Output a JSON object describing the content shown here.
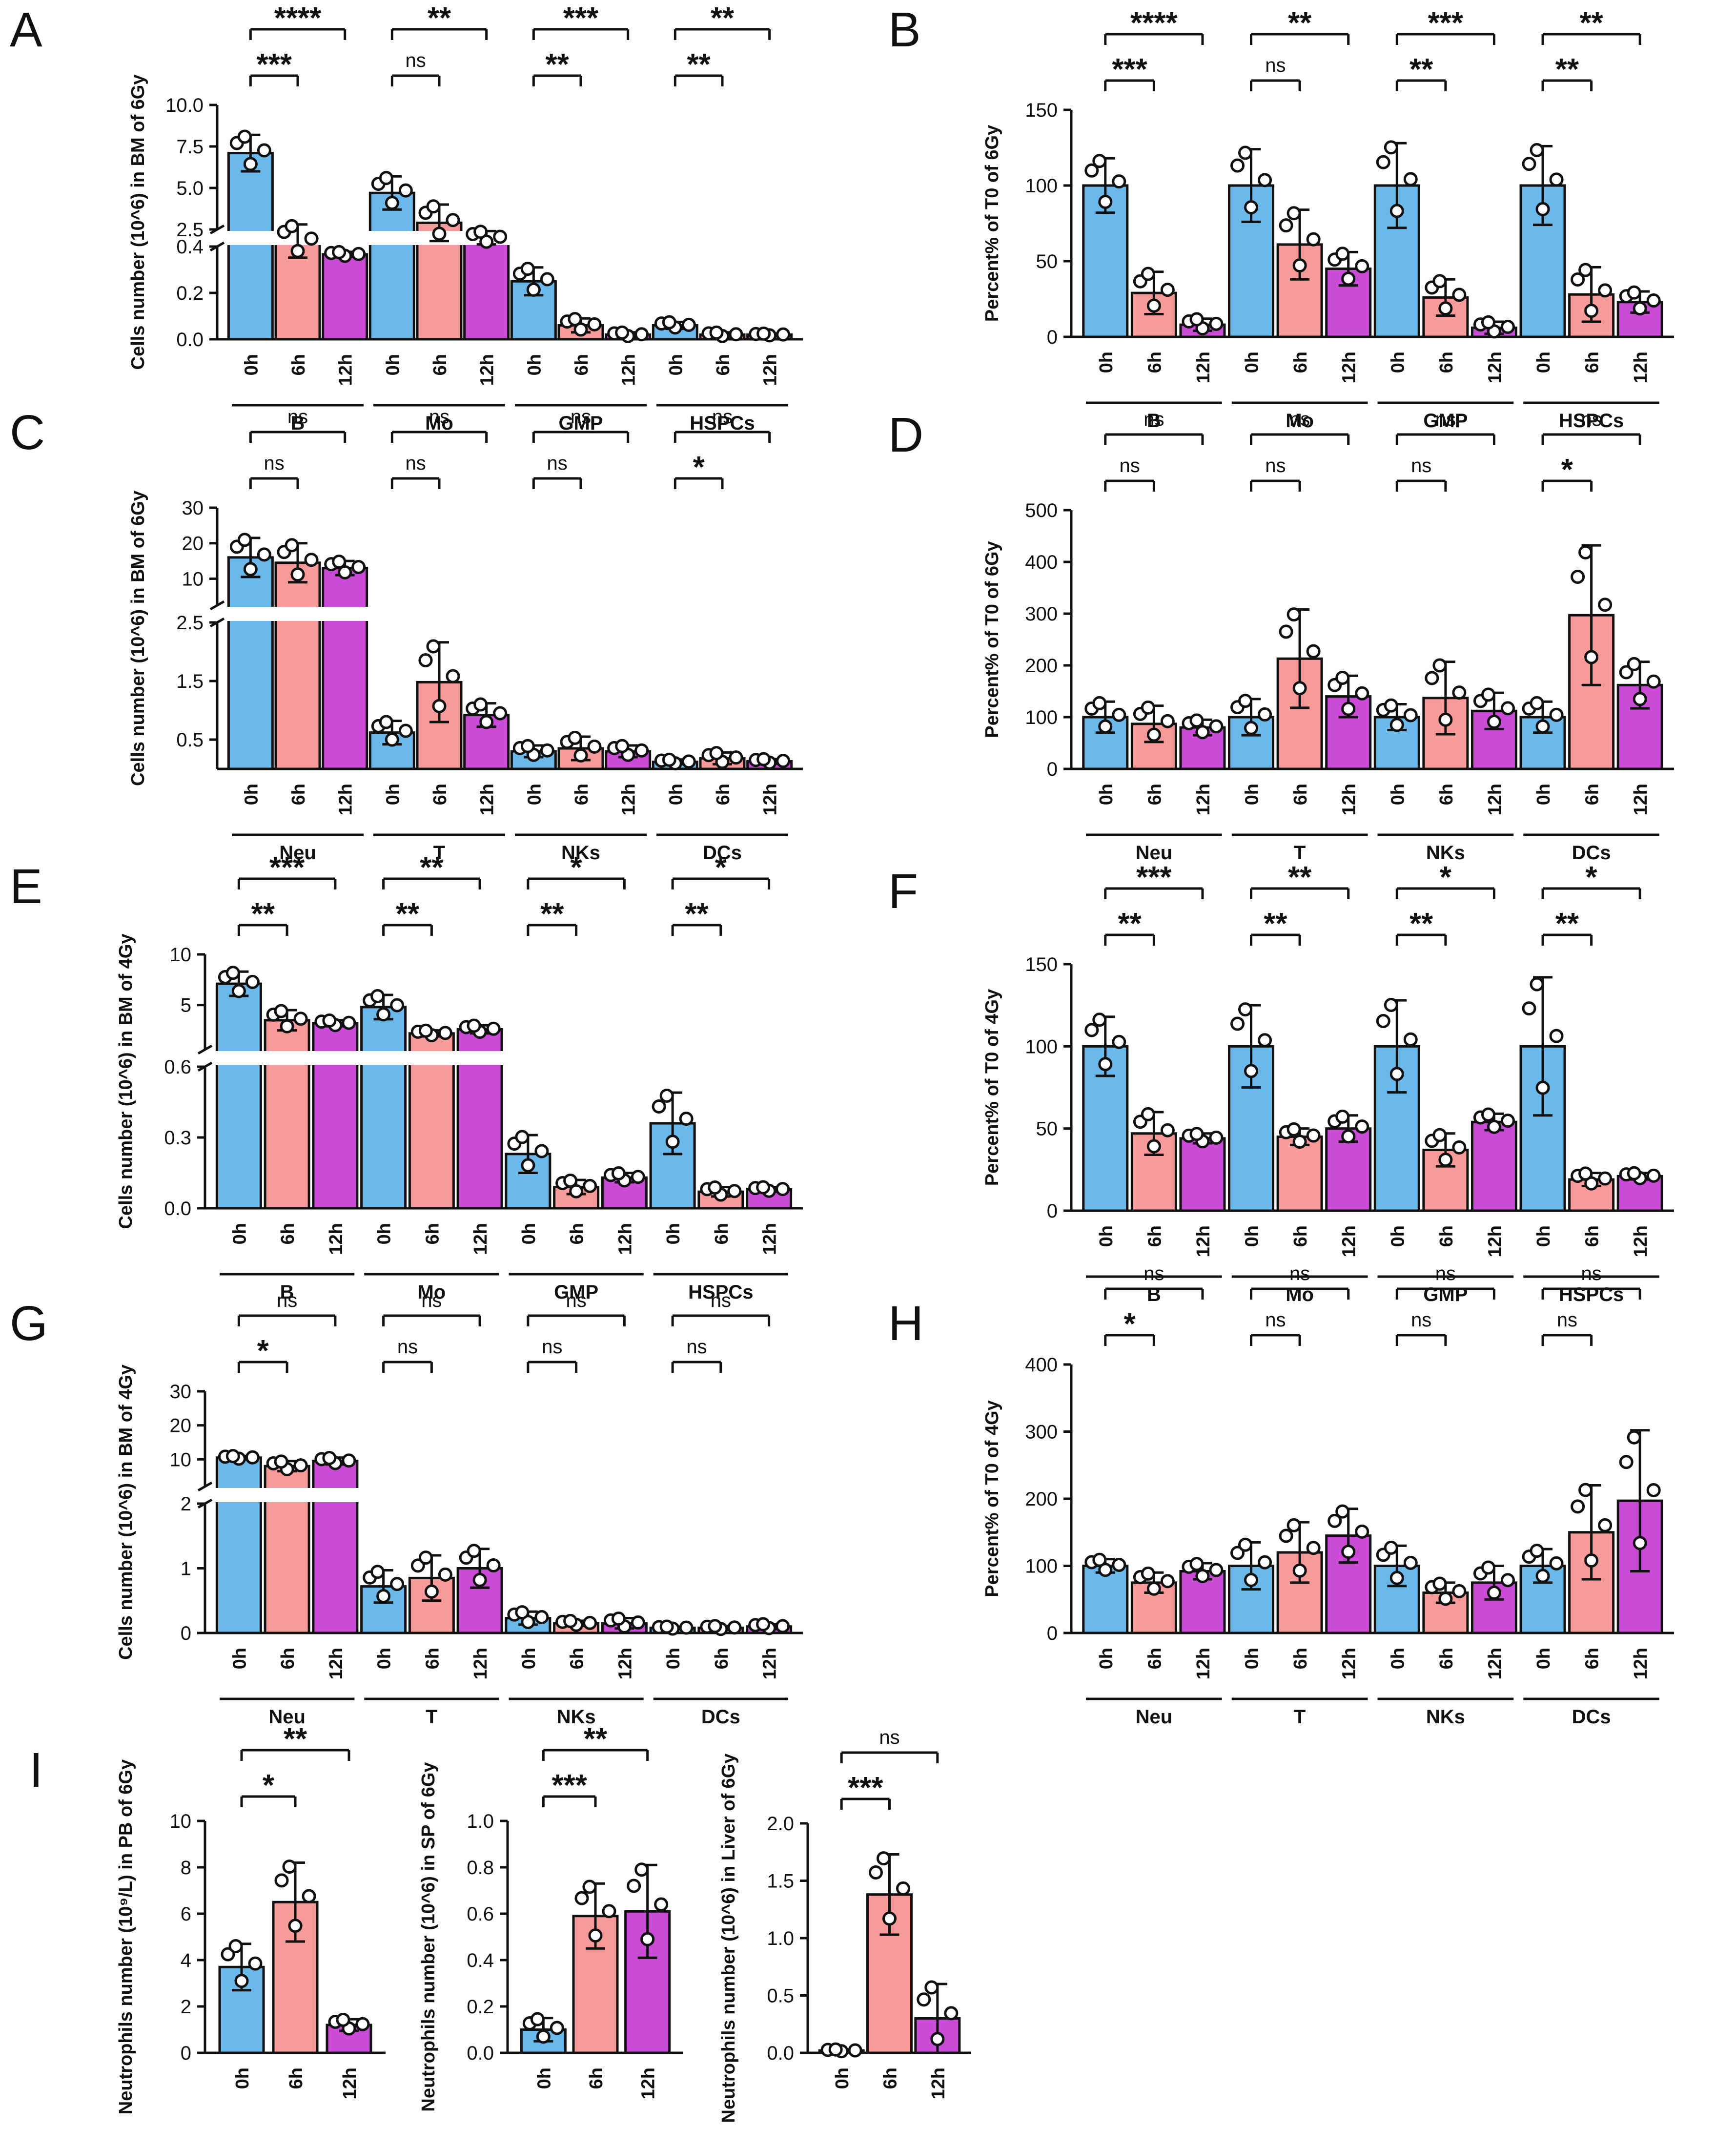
{
  "colors": {
    "c0h": "#6BB8EB",
    "c6h": "#F79A9A",
    "c12h": "#C94BD6",
    "ink": "#111111"
  },
  "chart_data": [
    {
      "panel": "A",
      "type": "bar",
      "ylabel": "Cells number (10^6) in BM of 6Gy",
      "groups": [
        "B",
        "Mo",
        "GMP",
        "HSPCs"
      ],
      "conditions": [
        "0h",
        "6h",
        "12h"
      ],
      "axis": {
        "lower": [
          0,
          0.4
        ],
        "upper": [
          2.5,
          10
        ],
        "lower_ticks": [
          "0.0",
          "0.2",
          "0.4"
        ],
        "upper_ticks": [
          "2.5",
          "5.0",
          "7.5",
          "10.0"
        ]
      },
      "values": [
        [
          7.1,
          1.8,
          1.0
        ],
        [
          4.7,
          2.9,
          2.0
        ],
        [
          0.25,
          0.06,
          0.02
        ],
        [
          0.06,
          0.02,
          0.02
        ]
      ],
      "errors": [
        [
          1.1,
          1.0,
          0.15
        ],
        [
          1.0,
          1.1,
          0.4
        ],
        [
          0.06,
          0.03,
          0.01
        ],
        [
          0.015,
          0.01,
          0.005
        ]
      ],
      "significance": [
        {
          "group": 0,
          "pair": [
            0,
            1
          ],
          "label": "***"
        },
        {
          "group": 0,
          "pair": [
            0,
            2
          ],
          "label": "****"
        },
        {
          "group": 1,
          "pair": [
            0,
            1
          ],
          "label": "ns"
        },
        {
          "group": 1,
          "pair": [
            0,
            2
          ],
          "label": "**"
        },
        {
          "group": 2,
          "pair": [
            0,
            1
          ],
          "label": "**"
        },
        {
          "group": 2,
          "pair": [
            0,
            2
          ],
          "label": "***"
        },
        {
          "group": 3,
          "pair": [
            0,
            1
          ],
          "label": "**"
        },
        {
          "group": 3,
          "pair": [
            0,
            2
          ],
          "label": "**"
        }
      ]
    },
    {
      "panel": "B",
      "type": "bar",
      "ylabel": "Percent% of T0 of 6Gy",
      "groups": [
        "B",
        "Mo",
        "GMP",
        "HSPCs"
      ],
      "conditions": [
        "0h",
        "6h",
        "12h"
      ],
      "axis": {
        "range": [
          0,
          150
        ],
        "ticks": [
          "0",
          "50",
          "100",
          "150"
        ]
      },
      "values": [
        [
          100,
          29,
          8
        ],
        [
          100,
          61,
          45
        ],
        [
          100,
          26,
          6
        ],
        [
          100,
          28,
          23
        ]
      ],
      "errors": [
        [
          18,
          14,
          4
        ],
        [
          24,
          23,
          11
        ],
        [
          28,
          12,
          4
        ],
        [
          26,
          18,
          7
        ]
      ],
      "significance": [
        {
          "group": 0,
          "pair": [
            0,
            1
          ],
          "label": "***"
        },
        {
          "group": 0,
          "pair": [
            0,
            2
          ],
          "label": "****"
        },
        {
          "group": 1,
          "pair": [
            0,
            1
          ],
          "label": "ns"
        },
        {
          "group": 1,
          "pair": [
            0,
            2
          ],
          "label": "**"
        },
        {
          "group": 2,
          "pair": [
            0,
            1
          ],
          "label": "**"
        },
        {
          "group": 2,
          "pair": [
            0,
            2
          ],
          "label": "***"
        },
        {
          "group": 3,
          "pair": [
            0,
            1
          ],
          "label": "**"
        },
        {
          "group": 3,
          "pair": [
            0,
            2
          ],
          "label": "**"
        }
      ]
    },
    {
      "panel": "C",
      "type": "bar",
      "ylabel": "Cells number (10^6) in BM of 6Gy",
      "groups": [
        "Neu",
        "T",
        "NKs",
        "DCs"
      ],
      "conditions": [
        "0h",
        "6h",
        "12h"
      ],
      "axis": {
        "lower": [
          0,
          2.5
        ],
        "upper": [
          2.5,
          30
        ],
        "lower_ticks": [
          "0.5",
          "1.5",
          "2.5"
        ],
        "upper_ticks": [
          "10",
          "20",
          "30"
        ]
      },
      "values": [
        [
          16,
          14.5,
          13
        ],
        [
          0.62,
          1.48,
          0.92
        ],
        [
          0.3,
          0.35,
          0.3
        ],
        [
          0.12,
          0.18,
          0.13
        ]
      ],
      "errors": [
        [
          5.5,
          5.5,
          2
        ],
        [
          0.2,
          0.68,
          0.2
        ],
        [
          0.1,
          0.2,
          0.1
        ],
        [
          0.04,
          0.1,
          0.04
        ]
      ],
      "significance": [
        {
          "group": 0,
          "pair": [
            0,
            1
          ],
          "label": "ns"
        },
        {
          "group": 0,
          "pair": [
            0,
            2
          ],
          "label": "ns"
        },
        {
          "group": 1,
          "pair": [
            0,
            1
          ],
          "label": "ns"
        },
        {
          "group": 1,
          "pair": [
            0,
            2
          ],
          "label": "ns"
        },
        {
          "group": 2,
          "pair": [
            0,
            1
          ],
          "label": "ns"
        },
        {
          "group": 2,
          "pair": [
            0,
            2
          ],
          "label": "ns"
        },
        {
          "group": 3,
          "pair": [
            0,
            1
          ],
          "label": "*"
        },
        {
          "group": 3,
          "pair": [
            0,
            2
          ],
          "label": "ns"
        }
      ]
    },
    {
      "panel": "D",
      "type": "bar",
      "ylabel": "Percent% of T0 of 6Gy",
      "groups": [
        "Neu",
        "T",
        "NKs",
        "DCs"
      ],
      "conditions": [
        "0h",
        "6h",
        "12h"
      ],
      "axis": {
        "range": [
          0,
          500
        ],
        "ticks": [
          "0",
          "100",
          "200",
          "300",
          "400",
          "500"
        ]
      },
      "values": [
        [
          100,
          87,
          80
        ],
        [
          100,
          213,
          140
        ],
        [
          100,
          137,
          112
        ],
        [
          100,
          297,
          162
        ]
      ],
      "errors": [
        [
          30,
          35,
          15
        ],
        [
          35,
          95,
          40
        ],
        [
          25,
          70,
          35
        ],
        [
          30,
          135,
          45
        ]
      ],
      "significance": [
        {
          "group": 0,
          "pair": [
            0,
            1
          ],
          "label": "ns"
        },
        {
          "group": 0,
          "pair": [
            0,
            2
          ],
          "label": "ns"
        },
        {
          "group": 1,
          "pair": [
            0,
            1
          ],
          "label": "ns"
        },
        {
          "group": 1,
          "pair": [
            0,
            2
          ],
          "label": "ns"
        },
        {
          "group": 2,
          "pair": [
            0,
            1
          ],
          "label": "ns"
        },
        {
          "group": 2,
          "pair": [
            0,
            2
          ],
          "label": "ns"
        },
        {
          "group": 3,
          "pair": [
            0,
            1
          ],
          "label": "*"
        },
        {
          "group": 3,
          "pair": [
            0,
            2
          ],
          "label": "ns"
        }
      ]
    },
    {
      "panel": "E",
      "type": "bar",
      "ylabel": "Cells number (10^6) in BM of 4Gy",
      "groups": [
        "B",
        "Mo",
        "GMP",
        "HSPCs"
      ],
      "conditions": [
        "0h",
        "6h",
        "12h"
      ],
      "axis": {
        "lower": [
          0,
          0.6
        ],
        "upper": [
          0.6,
          10
        ],
        "lower_ticks": [
          "0.0",
          "0.3",
          "0.6"
        ],
        "upper_ticks": [
          "5",
          "10"
        ]
      },
      "values": [
        [
          7.1,
          3.5,
          3.2
        ],
        [
          4.8,
          2.2,
          2.6
        ],
        [
          0.23,
          0.09,
          0.13
        ],
        [
          0.36,
          0.07,
          0.08
        ]
      ],
      "errors": [
        [
          1.2,
          1.0,
          0.3
        ],
        [
          1.2,
          0.3,
          0.4
        ],
        [
          0.08,
          0.03,
          0.02
        ],
        [
          0.13,
          0.02,
          0.01
        ]
      ],
      "significance": [
        {
          "group": 0,
          "pair": [
            0,
            1
          ],
          "label": "**"
        },
        {
          "group": 0,
          "pair": [
            0,
            2
          ],
          "label": "***"
        },
        {
          "group": 1,
          "pair": [
            0,
            1
          ],
          "label": "**"
        },
        {
          "group": 1,
          "pair": [
            0,
            2
          ],
          "label": "**"
        },
        {
          "group": 2,
          "pair": [
            0,
            1
          ],
          "label": "**"
        },
        {
          "group": 2,
          "pair": [
            0,
            2
          ],
          "label": "*"
        },
        {
          "group": 3,
          "pair": [
            0,
            1
          ],
          "label": "**"
        },
        {
          "group": 3,
          "pair": [
            0,
            2
          ],
          "label": "*"
        }
      ]
    },
    {
      "panel": "F",
      "type": "bar",
      "ylabel": "Percent% of T0 of 4Gy",
      "groups": [
        "B",
        "Mo",
        "GMP",
        "HSPCs"
      ],
      "conditions": [
        "0h",
        "6h",
        "12h"
      ],
      "axis": {
        "range": [
          0,
          150
        ],
        "ticks": [
          "0",
          "50",
          "100",
          "150"
        ]
      },
      "values": [
        [
          100,
          47,
          44
        ],
        [
          100,
          45,
          50
        ],
        [
          100,
          37,
          54
        ],
        [
          100,
          19,
          21
        ]
      ],
      "errors": [
        [
          18,
          13,
          3
        ],
        [
          25,
          5,
          8
        ],
        [
          28,
          10,
          5
        ],
        [
          42,
          4,
          2
        ]
      ],
      "significance": [
        {
          "group": 0,
          "pair": [
            0,
            1
          ],
          "label": "**"
        },
        {
          "group": 0,
          "pair": [
            0,
            2
          ],
          "label": "***"
        },
        {
          "group": 1,
          "pair": [
            0,
            1
          ],
          "label": "**"
        },
        {
          "group": 1,
          "pair": [
            0,
            2
          ],
          "label": "**"
        },
        {
          "group": 2,
          "pair": [
            0,
            1
          ],
          "label": "**"
        },
        {
          "group": 2,
          "pair": [
            0,
            2
          ],
          "label": "*"
        },
        {
          "group": 3,
          "pair": [
            0,
            1
          ],
          "label": "**"
        },
        {
          "group": 3,
          "pair": [
            0,
            2
          ],
          "label": "*"
        }
      ]
    },
    {
      "panel": "G",
      "type": "bar",
      "ylabel": "Cells number (10^6) in BM of 4Gy",
      "groups": [
        "Neu",
        "T",
        "NKs",
        "DCs"
      ],
      "conditions": [
        "0h",
        "6h",
        "12h"
      ],
      "axis": {
        "lower": [
          0,
          2
        ],
        "upper": [
          2,
          30
        ],
        "lower_ticks": [
          "0",
          "1",
          "2"
        ],
        "upper_ticks": [
          "10",
          "20",
          "30"
        ]
      },
      "values": [
        [
          10.5,
          8,
          9.5
        ],
        [
          0.72,
          0.85,
          1.0
        ],
        [
          0.23,
          0.15,
          0.15
        ],
        [
          0.08,
          0.08,
          0.1
        ]
      ],
      "errors": [
        [
          0.5,
          1.5,
          1.0
        ],
        [
          0.25,
          0.35,
          0.3
        ],
        [
          0.1,
          0.04,
          0.08
        ],
        [
          0.02,
          0.03,
          0.04
        ]
      ],
      "significance": [
        {
          "group": 0,
          "pair": [
            0,
            1
          ],
          "label": "*"
        },
        {
          "group": 0,
          "pair": [
            0,
            2
          ],
          "label": "ns"
        },
        {
          "group": 1,
          "pair": [
            0,
            1
          ],
          "label": "ns"
        },
        {
          "group": 1,
          "pair": [
            0,
            2
          ],
          "label": "ns"
        },
        {
          "group": 2,
          "pair": [
            0,
            1
          ],
          "label": "ns"
        },
        {
          "group": 2,
          "pair": [
            0,
            2
          ],
          "label": "ns"
        },
        {
          "group": 3,
          "pair": [
            0,
            1
          ],
          "label": "ns"
        },
        {
          "group": 3,
          "pair": [
            0,
            2
          ],
          "label": "ns"
        }
      ]
    },
    {
      "panel": "H",
      "type": "bar",
      "ylabel": "Percent% of T0 of 4Gy",
      "groups": [
        "Neu",
        "T",
        "NKs",
        "DCs"
      ],
      "conditions": [
        "0h",
        "6h",
        "12h"
      ],
      "axis": {
        "range": [
          0,
          400
        ],
        "ticks": [
          "0",
          "100",
          "200",
          "300",
          "400"
        ]
      },
      "values": [
        [
          100,
          75,
          92
        ],
        [
          100,
          120,
          145
        ],
        [
          100,
          60,
          75
        ],
        [
          100,
          150,
          197
        ]
      ],
      "errors": [
        [
          10,
          15,
          12
        ],
        [
          35,
          45,
          40
        ],
        [
          30,
          15,
          25
        ],
        [
          25,
          70,
          105
        ]
      ],
      "significance": [
        {
          "group": 0,
          "pair": [
            0,
            1
          ],
          "label": "*"
        },
        {
          "group": 0,
          "pair": [
            0,
            2
          ],
          "label": "ns"
        },
        {
          "group": 1,
          "pair": [
            0,
            1
          ],
          "label": "ns"
        },
        {
          "group": 1,
          "pair": [
            0,
            2
          ],
          "label": "ns"
        },
        {
          "group": 2,
          "pair": [
            0,
            1
          ],
          "label": "ns"
        },
        {
          "group": 2,
          "pair": [
            0,
            2
          ],
          "label": "ns"
        },
        {
          "group": 3,
          "pair": [
            0,
            1
          ],
          "label": "ns"
        },
        {
          "group": 3,
          "pair": [
            0,
            2
          ],
          "label": "ns"
        }
      ]
    },
    {
      "panel": "I",
      "type": "bar",
      "ylabel": "Neutrophils number (10⁹/L) in PB of 6Gy",
      "conditions": [
        "0h",
        "6h",
        "12h"
      ],
      "axis": {
        "range": [
          0,
          10
        ],
        "ticks": [
          "0",
          "2",
          "4",
          "6",
          "8",
          "10"
        ]
      },
      "values": [
        3.7,
        6.5,
        1.2
      ],
      "errors": [
        1.0,
        1.7,
        0.25
      ],
      "significance": [
        {
          "pair": [
            0,
            1
          ],
          "label": "*"
        },
        {
          "pair": [
            0,
            2
          ],
          "label": "**"
        }
      ]
    },
    {
      "panel": "",
      "type": "bar",
      "ylabel": "Neutrophils number (10^6) in SP of 6Gy",
      "conditions": [
        "0h",
        "6h",
        "12h"
      ],
      "axis": {
        "range": [
          0,
          1.0
        ],
        "ticks": [
          "0.0",
          "0.2",
          "0.4",
          "0.6",
          "0.8",
          "1.0"
        ]
      },
      "values": [
        0.1,
        0.59,
        0.61
      ],
      "errors": [
        0.05,
        0.14,
        0.2
      ],
      "significance": [
        {
          "pair": [
            0,
            1
          ],
          "label": "***"
        },
        {
          "pair": [
            0,
            2
          ],
          "label": "**"
        }
      ]
    },
    {
      "panel": "",
      "type": "bar",
      "ylabel": "Neutrophils number (10^6) in Liver of 6Gy",
      "conditions": [
        "0h",
        "6h",
        "12h"
      ],
      "axis": {
        "range": [
          0,
          2.0
        ],
        "ticks": [
          "0.0",
          "0.5",
          "1.0",
          "1.5",
          "2.0"
        ]
      },
      "values": [
        0.02,
        1.38,
        0.3
      ],
      "errors": [
        0.01,
        0.35,
        0.3
      ],
      "significance": [
        {
          "pair": [
            0,
            1
          ],
          "label": "***"
        },
        {
          "pair": [
            0,
            2
          ],
          "label": "ns"
        }
      ]
    }
  ]
}
